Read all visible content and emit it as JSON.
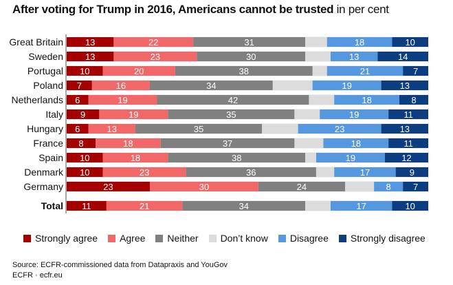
{
  "title": {
    "bold": "After voting for Trump in 2016, Americans cannot be trusted",
    "unit": " in per cent"
  },
  "chart_data": {
    "type": "bar",
    "orientation": "horizontal",
    "stacked": true,
    "title": "After voting for Trump in 2016, Americans cannot be trusted",
    "subtitle": "in per cent",
    "xlabel": "",
    "ylabel": "",
    "xlim": [
      0,
      100
    ],
    "grid": false,
    "legend_position": "bottom",
    "categories": [
      "Great Britain",
      "Sweden",
      "Portugal",
      "Poland",
      "Netherlands",
      "Italy",
      "Hungary",
      "France",
      "Spain",
      "Denmark",
      "Germany",
      "Total"
    ],
    "series": [
      {
        "name": "Strongly agree",
        "color": "#a50000",
        "labeled": true,
        "values": [
          13,
          13,
          10,
          7,
          6,
          9,
          6,
          8,
          10,
          10,
          23,
          11
        ]
      },
      {
        "name": "Agree",
        "color": "#f26868",
        "labeled": true,
        "values": [
          22,
          23,
          20,
          16,
          19,
          19,
          13,
          18,
          18,
          23,
          30,
          21
        ]
      },
      {
        "name": "Neither",
        "color": "#808080",
        "labeled": true,
        "values": [
          31,
          30,
          38,
          34,
          42,
          35,
          35,
          37,
          38,
          36,
          24,
          34
        ]
      },
      {
        "name": "Don’t know",
        "color": "#dcdcdc",
        "labeled": false,
        "values": [
          6,
          7,
          4,
          11,
          7,
          7,
          10,
          8,
          3,
          5,
          8,
          7
        ]
      },
      {
        "name": "Disagree",
        "color": "#5598e0",
        "labeled": true,
        "values": [
          18,
          13,
          21,
          19,
          18,
          19,
          23,
          18,
          19,
          17,
          8,
          17
        ]
      },
      {
        "name": "Strongly disagree",
        "color": "#0b3d80",
        "labeled": true,
        "values": [
          10,
          14,
          7,
          13,
          8,
          11,
          13,
          11,
          12,
          9,
          7,
          10
        ]
      }
    ],
    "bold_categories": [
      "Total"
    ]
  },
  "legend": [
    {
      "label": "Strongly agree",
      "color": "#a50000"
    },
    {
      "label": "Agree",
      "color": "#f26868"
    },
    {
      "label": "Neither",
      "color": "#808080"
    },
    {
      "label": "Don’t know",
      "color": "#dcdcdc"
    },
    {
      "label": "Disagree",
      "color": "#5598e0"
    },
    {
      "label": "Strongly disagree",
      "color": "#0b3d80"
    }
  ],
  "footer": {
    "source": "Source: ECFR-commissioned data from Datapraxis and YouGov",
    "credit": "ECFR · ecfr.eu"
  }
}
